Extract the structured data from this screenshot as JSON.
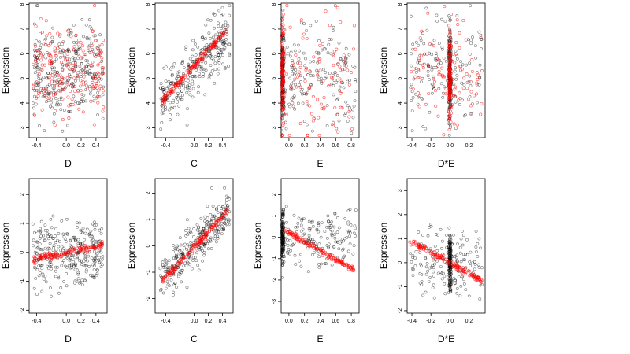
{
  "colors": {
    "black_points": "#000000",
    "red_points": "#ff0000",
    "red_fill": "#ff0000"
  },
  "chart_data": [
    {
      "type": "scatter",
      "xlabel": "D",
      "ylabel": "Expression",
      "xlim": [
        -0.5,
        0.55
      ],
      "ylim": [
        2.6,
        8.05
      ],
      "xticks": [
        -0.4,
        0.0,
        0.2,
        0.4
      ],
      "yticks": [
        3,
        4,
        5,
        6,
        7,
        8
      ],
      "pattern": "scatterD",
      "x_range": [
        -0.45,
        0.5
      ],
      "center": 5.3,
      "spread": 1.2,
      "red_pattern": "scatterD",
      "seed": 11,
      "black_count": 300,
      "red_count": 200
    },
    {
      "type": "scatter",
      "xlabel": "C",
      "ylabel": "Expression",
      "xlim": [
        -0.55,
        0.55
      ],
      "ylim": [
        2.6,
        8.05
      ],
      "xticks": [
        -0.4,
        0.0,
        0.2,
        0.4
      ],
      "yticks": [
        3,
        4,
        5,
        6,
        7,
        8
      ],
      "pattern": "linear",
      "x_range": [
        -0.48,
        0.5
      ],
      "line": [
        [
          -0.48,
          4.1
        ],
        [
          0.5,
          6.8
        ]
      ],
      "spread": 0.8,
      "red_pattern": "tight_line",
      "red_line": [
        [
          -0.45,
          4.1
        ],
        [
          0.48,
          7.0
        ]
      ],
      "seed": 23,
      "black_count": 300,
      "red_count": 160
    },
    {
      "type": "scatter",
      "xlabel": "E",
      "ylabel": "Expression",
      "xlim": [
        -0.1,
        0.9
      ],
      "ylim": [
        2.6,
        8.05
      ],
      "xticks": [
        0.0,
        0.2,
        0.4,
        0.6,
        0.8
      ],
      "yticks": [
        3,
        4,
        5,
        6,
        7,
        8
      ],
      "pattern": "cluster_left",
      "cluster_x": -0.08,
      "x_range": [
        -0.05,
        0.86
      ],
      "center": 5.2,
      "spread": 1.3,
      "red_pattern": "cluster_left",
      "seed": 37,
      "black_count": 320,
      "red_count": 220
    },
    {
      "type": "scatter",
      "xlabel": "D*E",
      "ylabel": "Expression",
      "xlim": [
        -0.45,
        0.37
      ],
      "ylim": [
        2.6,
        8.05
      ],
      "xticks": [
        -0.4,
        -0.2,
        0.0,
        0.2
      ],
      "yticks": [
        3,
        4,
        5,
        6,
        7,
        8
      ],
      "pattern": "cluster_mid",
      "cluster_x": 0.0,
      "x_range": [
        -0.42,
        0.34
      ],
      "center": 5.2,
      "spread": 1.2,
      "red_pattern": "cluster_mid",
      "seed": 53,
      "black_count": 320,
      "red_count": 220
    },
    {
      "type": "scatter",
      "xlabel": "D",
      "ylabel": "Expression",
      "xlim": [
        -0.5,
        0.55
      ],
      "ylim": [
        -2.1,
        2.55
      ],
      "xticks": [
        -0.4,
        0.0,
        0.2,
        0.4
      ],
      "yticks": [
        -2,
        -1,
        0,
        1,
        2
      ],
      "pattern": "scatterD",
      "x_range": [
        -0.45,
        0.5
      ],
      "center": 0.0,
      "spread": 0.7,
      "red_pattern": "tight_line",
      "red_line": [
        [
          -0.45,
          -0.25
        ],
        [
          0.5,
          0.25
        ]
      ],
      "seed": 71,
      "black_count": 300,
      "red_count": 150
    },
    {
      "type": "scatter",
      "xlabel": "C",
      "ylabel": "Expression",
      "xlim": [
        -0.55,
        0.55
      ],
      "ylim": [
        -2.55,
        2.55
      ],
      "xticks": [
        -0.4,
        0.0,
        0.2,
        0.4
      ],
      "yticks": [
        -2,
        -1,
        0,
        1,
        2
      ],
      "pattern": "linear",
      "x_range": [
        -0.48,
        0.5
      ],
      "line": [
        [
          -0.48,
          -1.3
        ],
        [
          0.5,
          1.3
        ]
      ],
      "spread": 0.6,
      "red_pattern": "tight_line",
      "red_line": [
        [
          -0.45,
          -1.35
        ],
        [
          0.48,
          1.35
        ]
      ],
      "seed": 89,
      "black_count": 300,
      "red_count": 150
    },
    {
      "type": "scatter",
      "xlabel": "E",
      "ylabel": "Expression",
      "xlim": [
        -0.1,
        0.9
      ],
      "ylim": [
        -3.55,
        2.75
      ],
      "xticks": [
        0.0,
        0.2,
        0.4,
        0.6,
        0.8
      ],
      "yticks": [
        -3,
        -2,
        -1,
        0,
        1,
        2
      ],
      "pattern": "cluster_left",
      "cluster_x": -0.08,
      "x_range": [
        -0.05,
        0.86
      ],
      "center": 0.0,
      "spread": 0.8,
      "red_pattern": "tight_line",
      "red_line": [
        [
          -0.05,
          0.3
        ],
        [
          0.85,
          -1.55
        ]
      ],
      "seed": 97,
      "black_count": 320,
      "red_count": 150
    },
    {
      "type": "scatter",
      "xlabel": "D*E",
      "ylabel": "Expression",
      "xlim": [
        -0.45,
        0.37
      ],
      "ylim": [
        -2.1,
        3.5
      ],
      "xticks": [
        -0.4,
        -0.2,
        0.0,
        0.2
      ],
      "yticks": [
        -2,
        -1,
        0,
        1,
        2,
        3
      ],
      "pattern": "cluster_mid",
      "cluster_x": 0.0,
      "x_range": [
        -0.42,
        0.34
      ],
      "center": 0.0,
      "spread": 0.8,
      "red_pattern": "tight_line",
      "red_line": [
        [
          -0.42,
          0.9
        ],
        [
          0.34,
          -0.75
        ]
      ],
      "seed": 113,
      "black_count": 320,
      "red_count": 150
    }
  ]
}
